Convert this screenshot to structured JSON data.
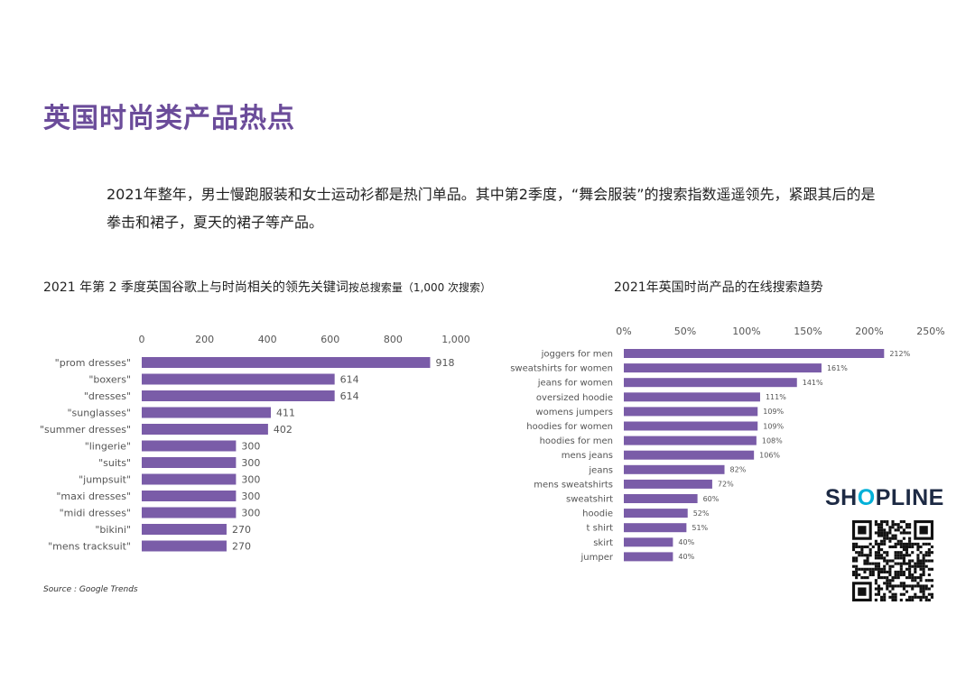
{
  "title": "英国时尚类产品热点",
  "intro": "2021年整年，男士慢跑服装和女士运动衫都是热门单品。其中第2季度，“舞会服装”的搜索指数遥遥领先，紧跟其后的是拳击和裙子，夏天的裙子等产品。",
  "source": "Source : Google Trends",
  "brand": {
    "pre": "SH",
    "o": "O",
    "post": "PLINE"
  },
  "colors": {
    "bar": "#7a5ca8",
    "title": "#6b4c9a",
    "text": "#555555"
  },
  "chart_data": [
    {
      "type": "bar",
      "orientation": "horizontal",
      "title": "2021 年第 2 季度英国谷歌上与时尚相关的领先关键词",
      "subtitle": "按总搜索量（1,000 次搜索）",
      "xlim": [
        0,
        1000
      ],
      "xticks": [
        "0",
        "200",
        "400",
        "600",
        "800",
        "1,000"
      ],
      "categories": [
        "\"prom dresses\"",
        "\"boxers\"",
        "\"dresses\"",
        "\"sunglasses\"",
        "\"summer dresses\"",
        "\"lingerie\"",
        "\"suits\"",
        "\"jumpsuit\"",
        "\"maxi dresses\"",
        "\"midi dresses\"",
        "\"bikini\"",
        "\"mens tracksuit\""
      ],
      "values": [
        918,
        614,
        614,
        411,
        402,
        300,
        300,
        300,
        300,
        300,
        270,
        270
      ],
      "value_labels": [
        "918",
        "614",
        "614",
        "411",
        "402",
        "300",
        "300",
        "300",
        "300",
        "300",
        "270",
        "270"
      ],
      "grid": false,
      "legend": "none"
    },
    {
      "type": "bar",
      "orientation": "horizontal",
      "title": "2021年英国时尚产品的在线搜索趋势",
      "xlim": [
        0,
        250
      ],
      "xticks": [
        "0%",
        "50%",
        "100%",
        "150%",
        "200%",
        "250%"
      ],
      "categories": [
        "joggers for men",
        "sweatshirts for women",
        "jeans for women",
        "oversized hoodie",
        "womens jumpers",
        "hoodies for women",
        "hoodies for men",
        "mens jeans",
        "jeans",
        "mens sweatshirts",
        "sweatshirt",
        "hoodie",
        "t shirt",
        "skirt",
        "jumper"
      ],
      "values": [
        212,
        161,
        141,
        111,
        109,
        109,
        108,
        106,
        82,
        72,
        60,
        52,
        51,
        40,
        40
      ],
      "value_labels": [
        "212%",
        "161%",
        "141%",
        "111%",
        "109%",
        "109%",
        "108%",
        "106%",
        "82%",
        "72%",
        "60%",
        "52%",
        "51%",
        "40%",
        "40%"
      ],
      "grid": false,
      "legend": "none"
    }
  ]
}
